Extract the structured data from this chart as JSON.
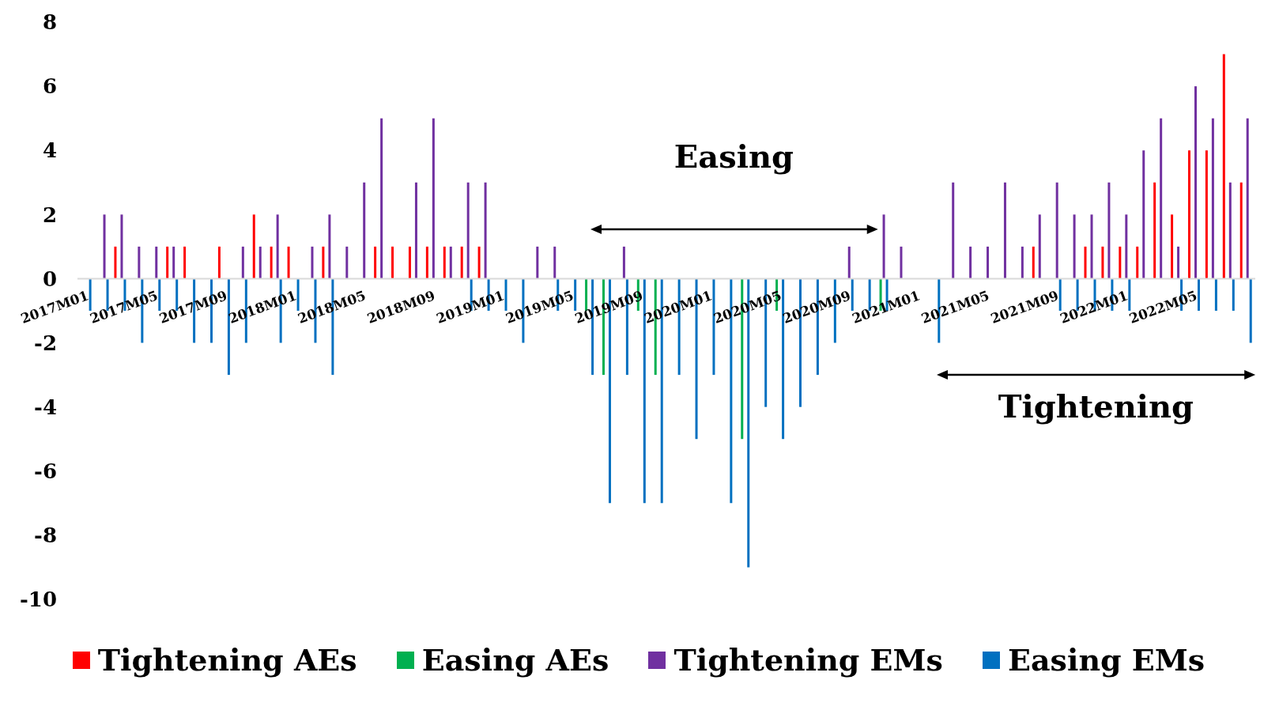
{
  "chart_data": {
    "type": "bar",
    "categories": [
      "2017M01",
      null,
      null,
      null,
      "2017M05",
      null,
      null,
      null,
      "2017M09",
      null,
      null,
      null,
      "2018M01",
      null,
      null,
      null,
      "2018M05",
      null,
      null,
      null,
      "2018M09",
      null,
      null,
      null,
      "2019M01",
      null,
      null,
      null,
      "2019M05",
      null,
      null,
      null,
      "2019M09",
      null,
      null,
      null,
      "2020M01",
      null,
      null,
      null,
      "2020M05",
      null,
      null,
      null,
      "2020M09",
      null,
      null,
      null,
      "2021M01",
      null,
      null,
      null,
      "2021M05",
      null,
      null,
      null,
      "2021M09",
      null,
      null,
      null,
      "2022M01",
      null,
      null,
      null,
      "2022M05",
      null,
      null,
      null
    ],
    "series": [
      {
        "name": "Tightening AEs",
        "color": "#ff0000",
        "values": [
          null,
          null,
          1,
          null,
          null,
          1,
          1,
          null,
          1,
          null,
          2,
          1,
          1,
          null,
          1,
          null,
          null,
          1,
          1,
          1,
          1,
          1,
          1,
          1,
          null,
          null,
          null,
          null,
          null,
          null,
          null,
          null,
          null,
          null,
          null,
          null,
          null,
          null,
          null,
          null,
          null,
          null,
          null,
          null,
          null,
          null,
          null,
          null,
          null,
          null,
          null,
          null,
          null,
          null,
          null,
          1,
          null,
          null,
          1,
          1,
          1,
          1,
          3,
          2,
          4,
          4,
          7,
          3
        ]
      },
      {
        "name": "Easing AEs",
        "color": "#00b050",
        "values": [
          null,
          null,
          null,
          null,
          null,
          null,
          null,
          null,
          null,
          null,
          null,
          null,
          null,
          null,
          null,
          null,
          null,
          null,
          null,
          null,
          null,
          null,
          null,
          null,
          null,
          null,
          null,
          null,
          null,
          -1,
          -3,
          null,
          -1,
          -3,
          null,
          null,
          null,
          null,
          -5,
          null,
          -1,
          null,
          null,
          null,
          null,
          null,
          -1,
          null,
          null,
          null,
          null,
          null,
          null,
          null,
          null,
          null,
          null,
          null,
          null,
          null,
          null,
          null,
          null,
          null,
          null,
          null,
          null,
          null
        ]
      },
      {
        "name": "Tightening EMs",
        "color": "#7030a0",
        "values": [
          null,
          2,
          2,
          1,
          1,
          1,
          null,
          null,
          null,
          1,
          1,
          2,
          null,
          1,
          2,
          1,
          3,
          5,
          null,
          3,
          5,
          1,
          3,
          3,
          null,
          null,
          1,
          1,
          null,
          null,
          null,
          1,
          null,
          null,
          null,
          null,
          null,
          null,
          null,
          null,
          null,
          null,
          null,
          null,
          1,
          null,
          2,
          1,
          null,
          null,
          3,
          1,
          1,
          3,
          1,
          2,
          3,
          2,
          2,
          3,
          2,
          4,
          5,
          1,
          6,
          5,
          3,
          5
        ]
      },
      {
        "name": "Easing EMs",
        "color": "#0070c0",
        "values": [
          -1,
          -1,
          -1,
          -2,
          -1,
          -1,
          -2,
          -2,
          -3,
          -2,
          null,
          -2,
          -1,
          -2,
          -3,
          null,
          null,
          null,
          null,
          null,
          null,
          null,
          -1,
          -1,
          -1,
          -2,
          null,
          -1,
          -1,
          -3,
          -7,
          -3,
          -7,
          -7,
          -3,
          -5,
          -3,
          -7,
          -9,
          -4,
          -5,
          -4,
          -3,
          -2,
          -1,
          -1,
          -1,
          null,
          null,
          -2,
          null,
          null,
          null,
          null,
          null,
          null,
          -1,
          -1,
          -1,
          -1,
          -1,
          null,
          null,
          -1,
          -1,
          -1,
          -1,
          -2
        ]
      }
    ],
    "ylim": [
      -10,
      8
    ],
    "yticks": [
      -10,
      -8,
      -6,
      -4,
      -2,
      0,
      2,
      4,
      6,
      8
    ],
    "grid": false,
    "legend": "bottom",
    "annotations": [
      "Easing",
      "Tightening"
    ]
  }
}
